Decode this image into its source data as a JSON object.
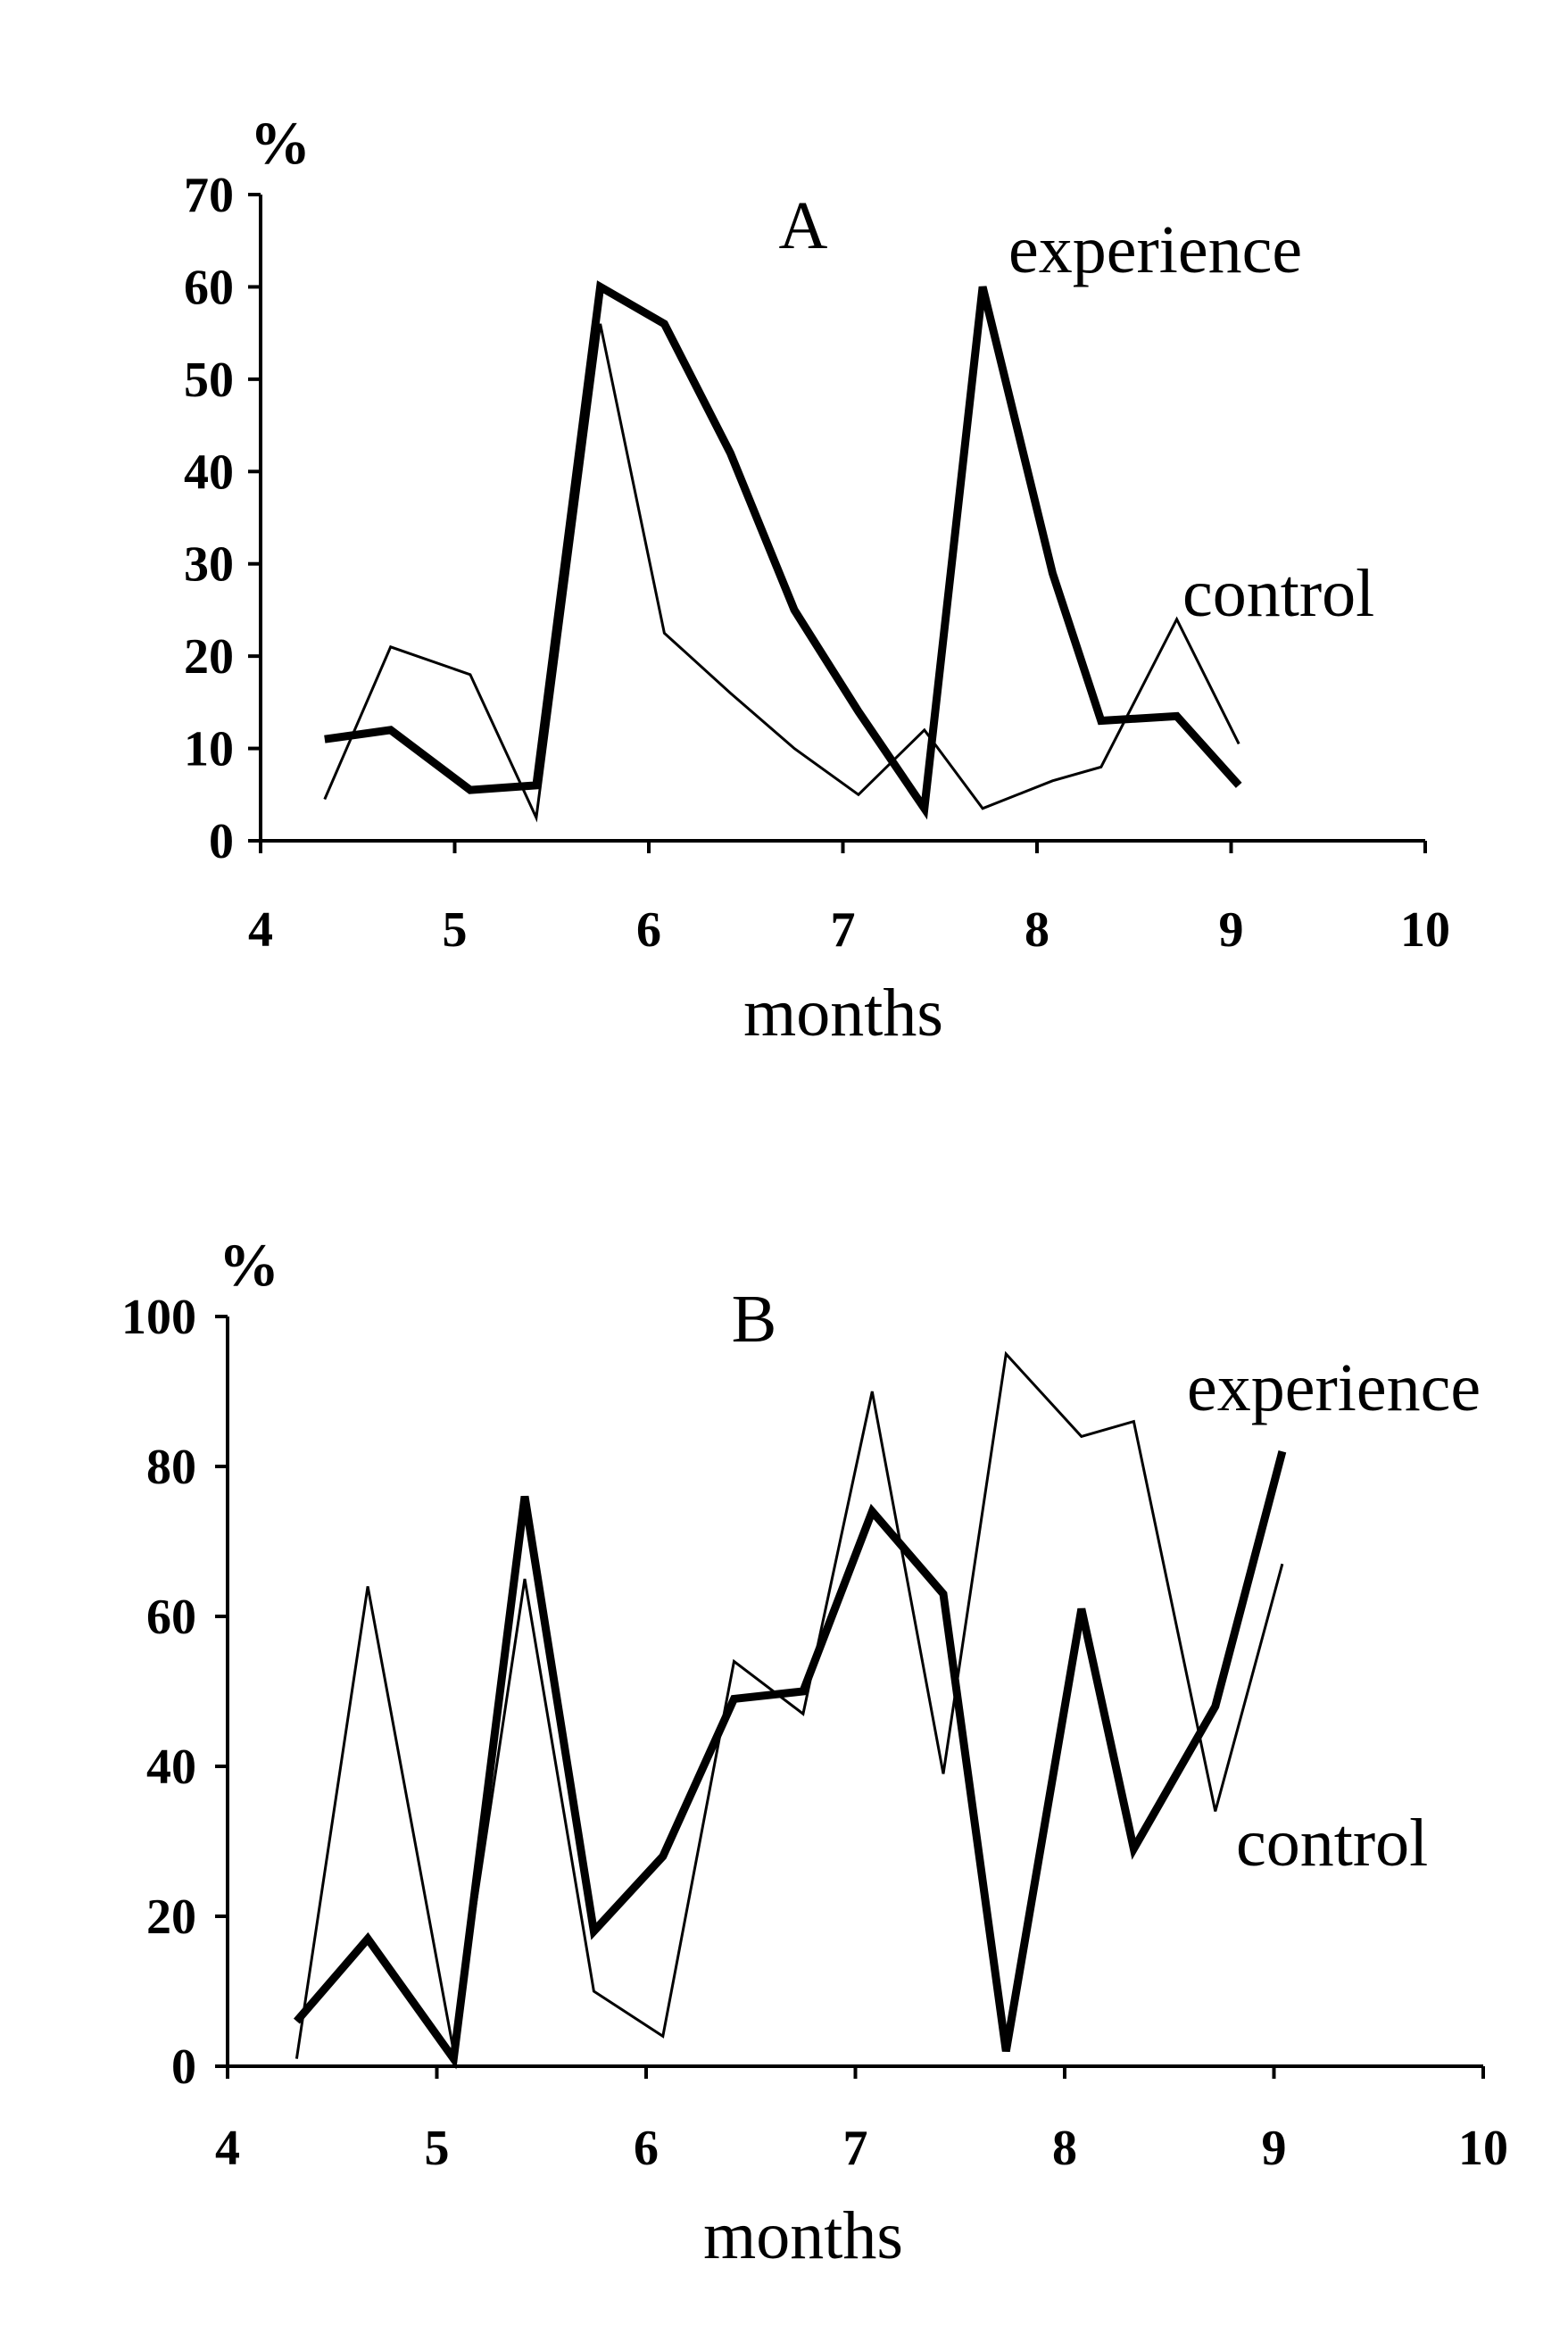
{
  "chart_data": [
    {
      "type": "line",
      "panel_label": "A",
      "unit_label": "%",
      "xlabel": "months",
      "ylabel": "",
      "xlim": [
        4,
        10
      ],
      "ylim": [
        0,
        70
      ],
      "xticks": [
        4,
        5,
        6,
        7,
        8,
        9,
        10
      ],
      "yticks": [
        0,
        10,
        20,
        30,
        40,
        50,
        60,
        70
      ],
      "legend": "inline",
      "grid": false,
      "series": [
        {
          "name": "experience",
          "style": "thick",
          "x": [
            4.33,
            4.67,
            5.08,
            5.42,
            5.75,
            6.08,
            6.42,
            6.75,
            7.08,
            7.42,
            7.72,
            8.08,
            8.33,
            8.72,
            9.04
          ],
          "y": [
            11,
            12,
            5.5,
            6,
            60,
            56,
            42,
            25,
            14,
            3.5,
            60,
            29,
            13,
            13.5,
            6
          ]
        },
        {
          "name": "control",
          "style": "thin",
          "x": [
            4.33,
            4.67,
            5.08,
            5.42,
            5.75,
            6.08,
            6.42,
            6.75,
            7.08,
            7.42,
            7.72,
            8.08,
            8.33,
            8.72,
            9.04
          ],
          "y": [
            4.5,
            21,
            18,
            2.5,
            56,
            22.5,
            16,
            10,
            5,
            12,
            3.5,
            6.5,
            8,
            24,
            10.5
          ]
        }
      ]
    },
    {
      "type": "line",
      "panel_label": "B",
      "unit_label": "%",
      "xlabel": "months",
      "ylabel": "",
      "xlim": [
        4,
        10
      ],
      "ylim": [
        0,
        100
      ],
      "xticks": [
        4,
        5,
        6,
        7,
        8,
        9,
        10
      ],
      "yticks": [
        0,
        20,
        40,
        60,
        80,
        100
      ],
      "legend": "inline",
      "grid": false,
      "series": [
        {
          "name": "experience",
          "style": "thick",
          "x": [
            4.33,
            4.67,
            5.08,
            5.42,
            5.75,
            6.08,
            6.42,
            6.75,
            7.08,
            7.42,
            7.72,
            8.08,
            8.33,
            8.72,
            9.04
          ],
          "y": [
            6,
            17,
            1,
            76,
            18,
            28,
            49,
            50,
            74,
            63,
            2,
            61,
            29,
            48,
            82
          ]
        },
        {
          "name": "control",
          "style": "thin",
          "x": [
            4.33,
            4.67,
            5.08,
            5.42,
            5.75,
            6.08,
            6.42,
            6.75,
            7.08,
            7.42,
            7.72,
            8.08,
            8.33,
            8.72,
            9.04
          ],
          "y": [
            1,
            64,
            2,
            65,
            10,
            4,
            54,
            47,
            90,
            39,
            95,
            84,
            86,
            34,
            67
          ]
        }
      ]
    }
  ]
}
